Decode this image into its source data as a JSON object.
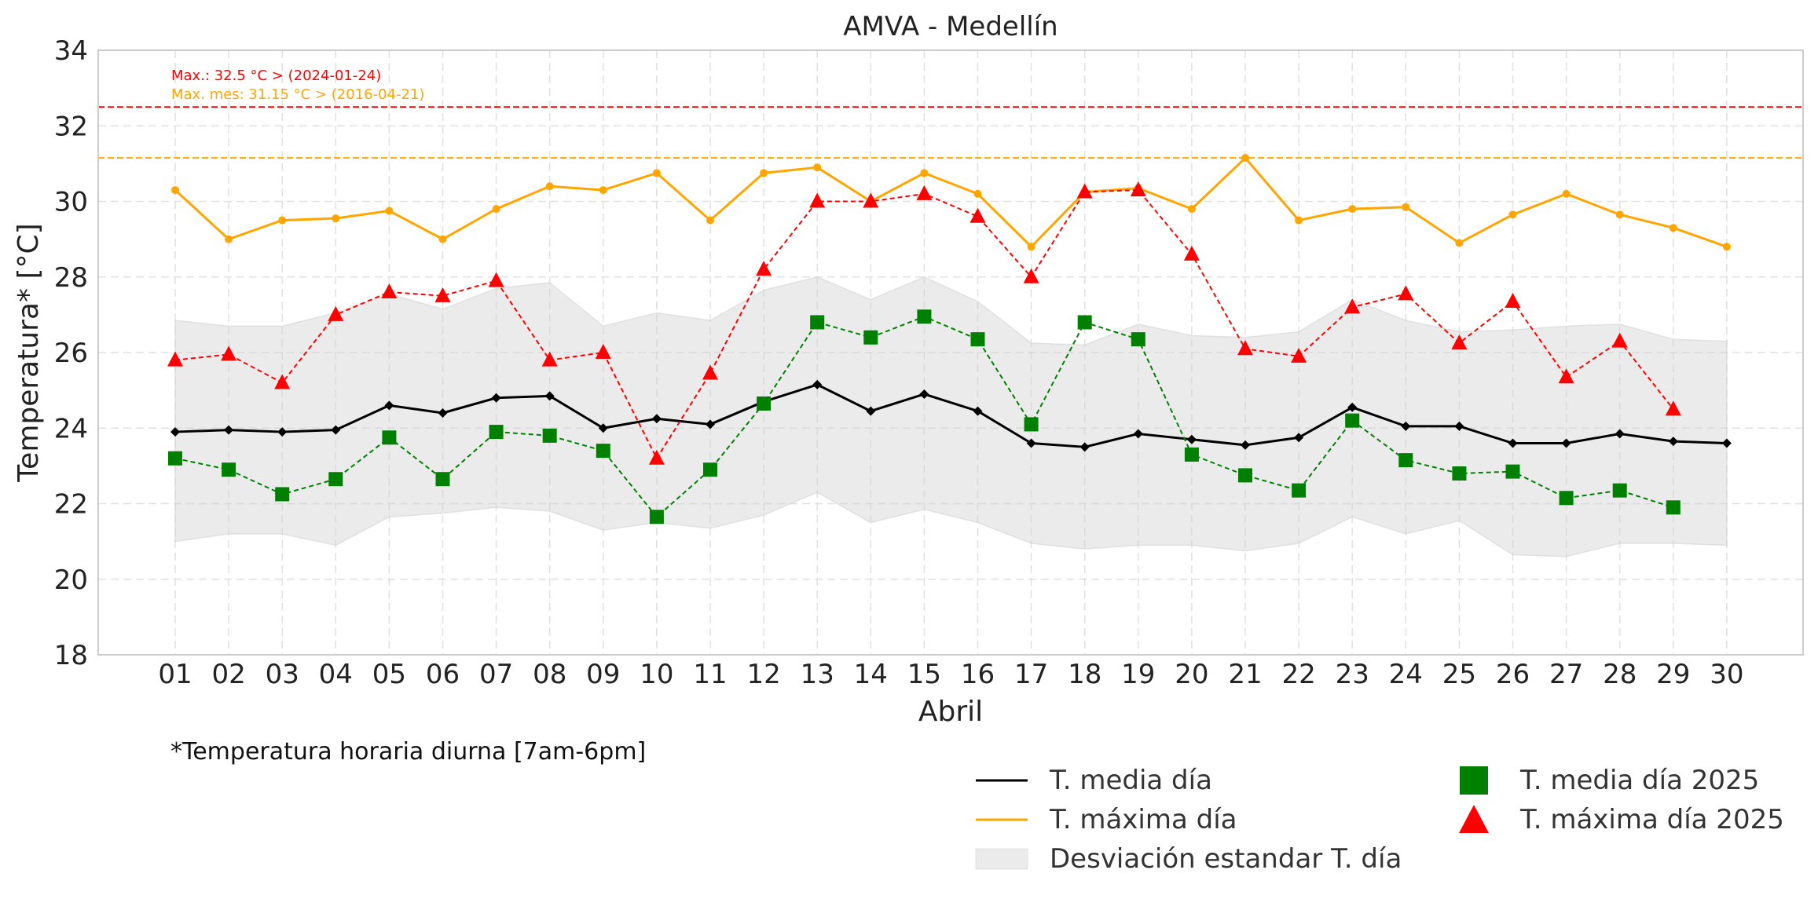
{
  "chart_data": {
    "type": "line",
    "title": "AMVA - Medellín",
    "xlabel": "Abril",
    "ylabel": "Temperatura* [°C]",
    "ylim": [
      18,
      34
    ],
    "yticks": [
      18,
      20,
      22,
      24,
      26,
      28,
      30,
      32,
      34
    ],
    "categories": [
      "01",
      "02",
      "03",
      "04",
      "05",
      "06",
      "07",
      "08",
      "09",
      "10",
      "11",
      "12",
      "13",
      "14",
      "15",
      "16",
      "17",
      "18",
      "19",
      "20",
      "21",
      "22",
      "23",
      "24",
      "25",
      "26",
      "27",
      "28",
      "29",
      "30"
    ],
    "grid": true,
    "series": [
      {
        "name": "T. media día",
        "color": "#000000",
        "style": "solid",
        "marker": "diamond",
        "values": [
          23.9,
          23.95,
          23.9,
          23.95,
          24.6,
          24.4,
          24.8,
          24.85,
          24.0,
          24.25,
          24.1,
          24.7,
          25.15,
          24.45,
          24.9,
          24.45,
          23.6,
          23.5,
          23.85,
          23.7,
          23.55,
          23.75,
          24.55,
          24.05,
          24.05,
          23.6,
          23.6,
          23.85,
          23.65,
          23.6
        ]
      },
      {
        "name": "T. máxima día",
        "color": "#ffa500",
        "style": "solid",
        "marker": "circle",
        "values": [
          30.3,
          29.0,
          29.5,
          29.55,
          29.75,
          29.0,
          29.8,
          30.4,
          30.3,
          30.75,
          29.5,
          30.75,
          30.9,
          30.0,
          30.75,
          30.2,
          28.8,
          30.25,
          30.35,
          29.8,
          31.15,
          29.5,
          29.8,
          29.85,
          28.9,
          29.65,
          30.2,
          29.65,
          29.3,
          28.8
        ]
      },
      {
        "name": "T. media día 2025",
        "color": "#008000",
        "style": "dashed",
        "marker": "square",
        "values": [
          23.2,
          22.9,
          22.25,
          22.65,
          23.75,
          22.65,
          23.9,
          23.8,
          23.4,
          21.65,
          22.9,
          24.65,
          26.8,
          26.4,
          26.95,
          26.35,
          24.1,
          26.8,
          26.35,
          23.3,
          22.75,
          22.35,
          24.2,
          23.15,
          22.8,
          22.85,
          22.15,
          22.35,
          21.9,
          null
        ]
      },
      {
        "name": "T. máxima día 2025",
        "color": "#ff0000",
        "style": "dashed",
        "marker": "triangle",
        "values": [
          25.8,
          25.95,
          25.2,
          27.0,
          27.6,
          27.5,
          27.9,
          25.8,
          26.0,
          23.2,
          25.45,
          28.2,
          30.0,
          30.0,
          30.2,
          29.6,
          28.0,
          30.25,
          30.3,
          28.6,
          26.1,
          25.9,
          27.2,
          27.55,
          26.25,
          27.35,
          25.35,
          26.3,
          24.5,
          null
        ]
      }
    ],
    "band": {
      "name": "Desviación estandar T. día",
      "color": "#d3d3d3",
      "upper": [
        26.85,
        26.7,
        26.7,
        27.05,
        27.55,
        27.15,
        27.7,
        27.85,
        26.7,
        27.05,
        26.85,
        27.65,
        28.0,
        27.4,
        28.0,
        27.35,
        26.25,
        26.2,
        26.75,
        26.45,
        26.4,
        26.55,
        27.4,
        26.85,
        26.55,
        26.6,
        26.7,
        26.75,
        26.35,
        26.3
      ],
      "lower": [
        21.0,
        21.2,
        21.2,
        20.9,
        21.65,
        21.75,
        21.9,
        21.8,
        21.3,
        21.5,
        21.35,
        21.7,
        22.3,
        21.5,
        21.85,
        21.5,
        20.95,
        20.8,
        20.9,
        20.9,
        20.75,
        20.95,
        21.65,
        21.2,
        21.55,
        20.65,
        20.6,
        20.95,
        20.95,
        20.9
      ]
    },
    "reference_lines": [
      {
        "value": 32.5,
        "color": "#ff0000",
        "label": "Max.: 32.5 °C  >  (2024-01-24)"
      },
      {
        "value": 31.15,
        "color": "#ffa500",
        "label": "Max. mes: 31.15 °C  >  (2016-04-21)"
      }
    ],
    "legend_position": "lower-right"
  },
  "footnote": "*Temperatura horaria diurna [7am-6pm]",
  "legend": {
    "media": "T. media día",
    "maxima": "T. máxima día",
    "band": "Desviación estandar T. día",
    "media2025": "T. media día 2025",
    "maxima2025": "T. máxima día 2025"
  }
}
